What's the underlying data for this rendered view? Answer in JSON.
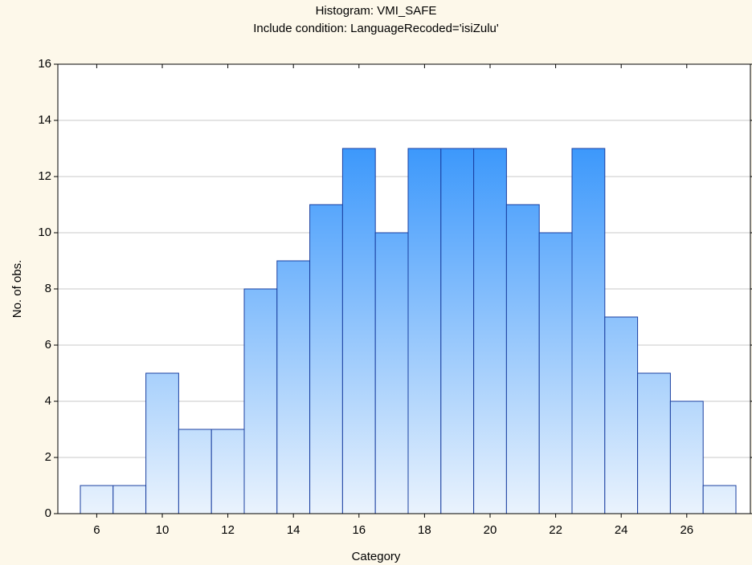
{
  "chart_data": {
    "type": "bar",
    "title": "Histogram: VMI_SAFE",
    "subtitle": "Include condition: LanguageRecoded='isiZulu'",
    "x_label": "Category",
    "y_label": "No. of obs.",
    "categories": [
      "6",
      null,
      "10",
      null,
      "12",
      null,
      "14",
      null,
      "16",
      null,
      "18",
      null,
      "20",
      null,
      "22",
      null,
      "24",
      null,
      "26",
      null
    ],
    "values": [
      1,
      1,
      5,
      3,
      3,
      8,
      9,
      11,
      13,
      10,
      13,
      13,
      13,
      11,
      10,
      13,
      7,
      5,
      4,
      1
    ],
    "color": "#2f91fb",
    "ylim": [
      0,
      16
    ],
    "yticks": [
      0,
      2,
      4,
      6,
      8,
      10,
      12,
      14,
      16
    ],
    "grid": true
  }
}
